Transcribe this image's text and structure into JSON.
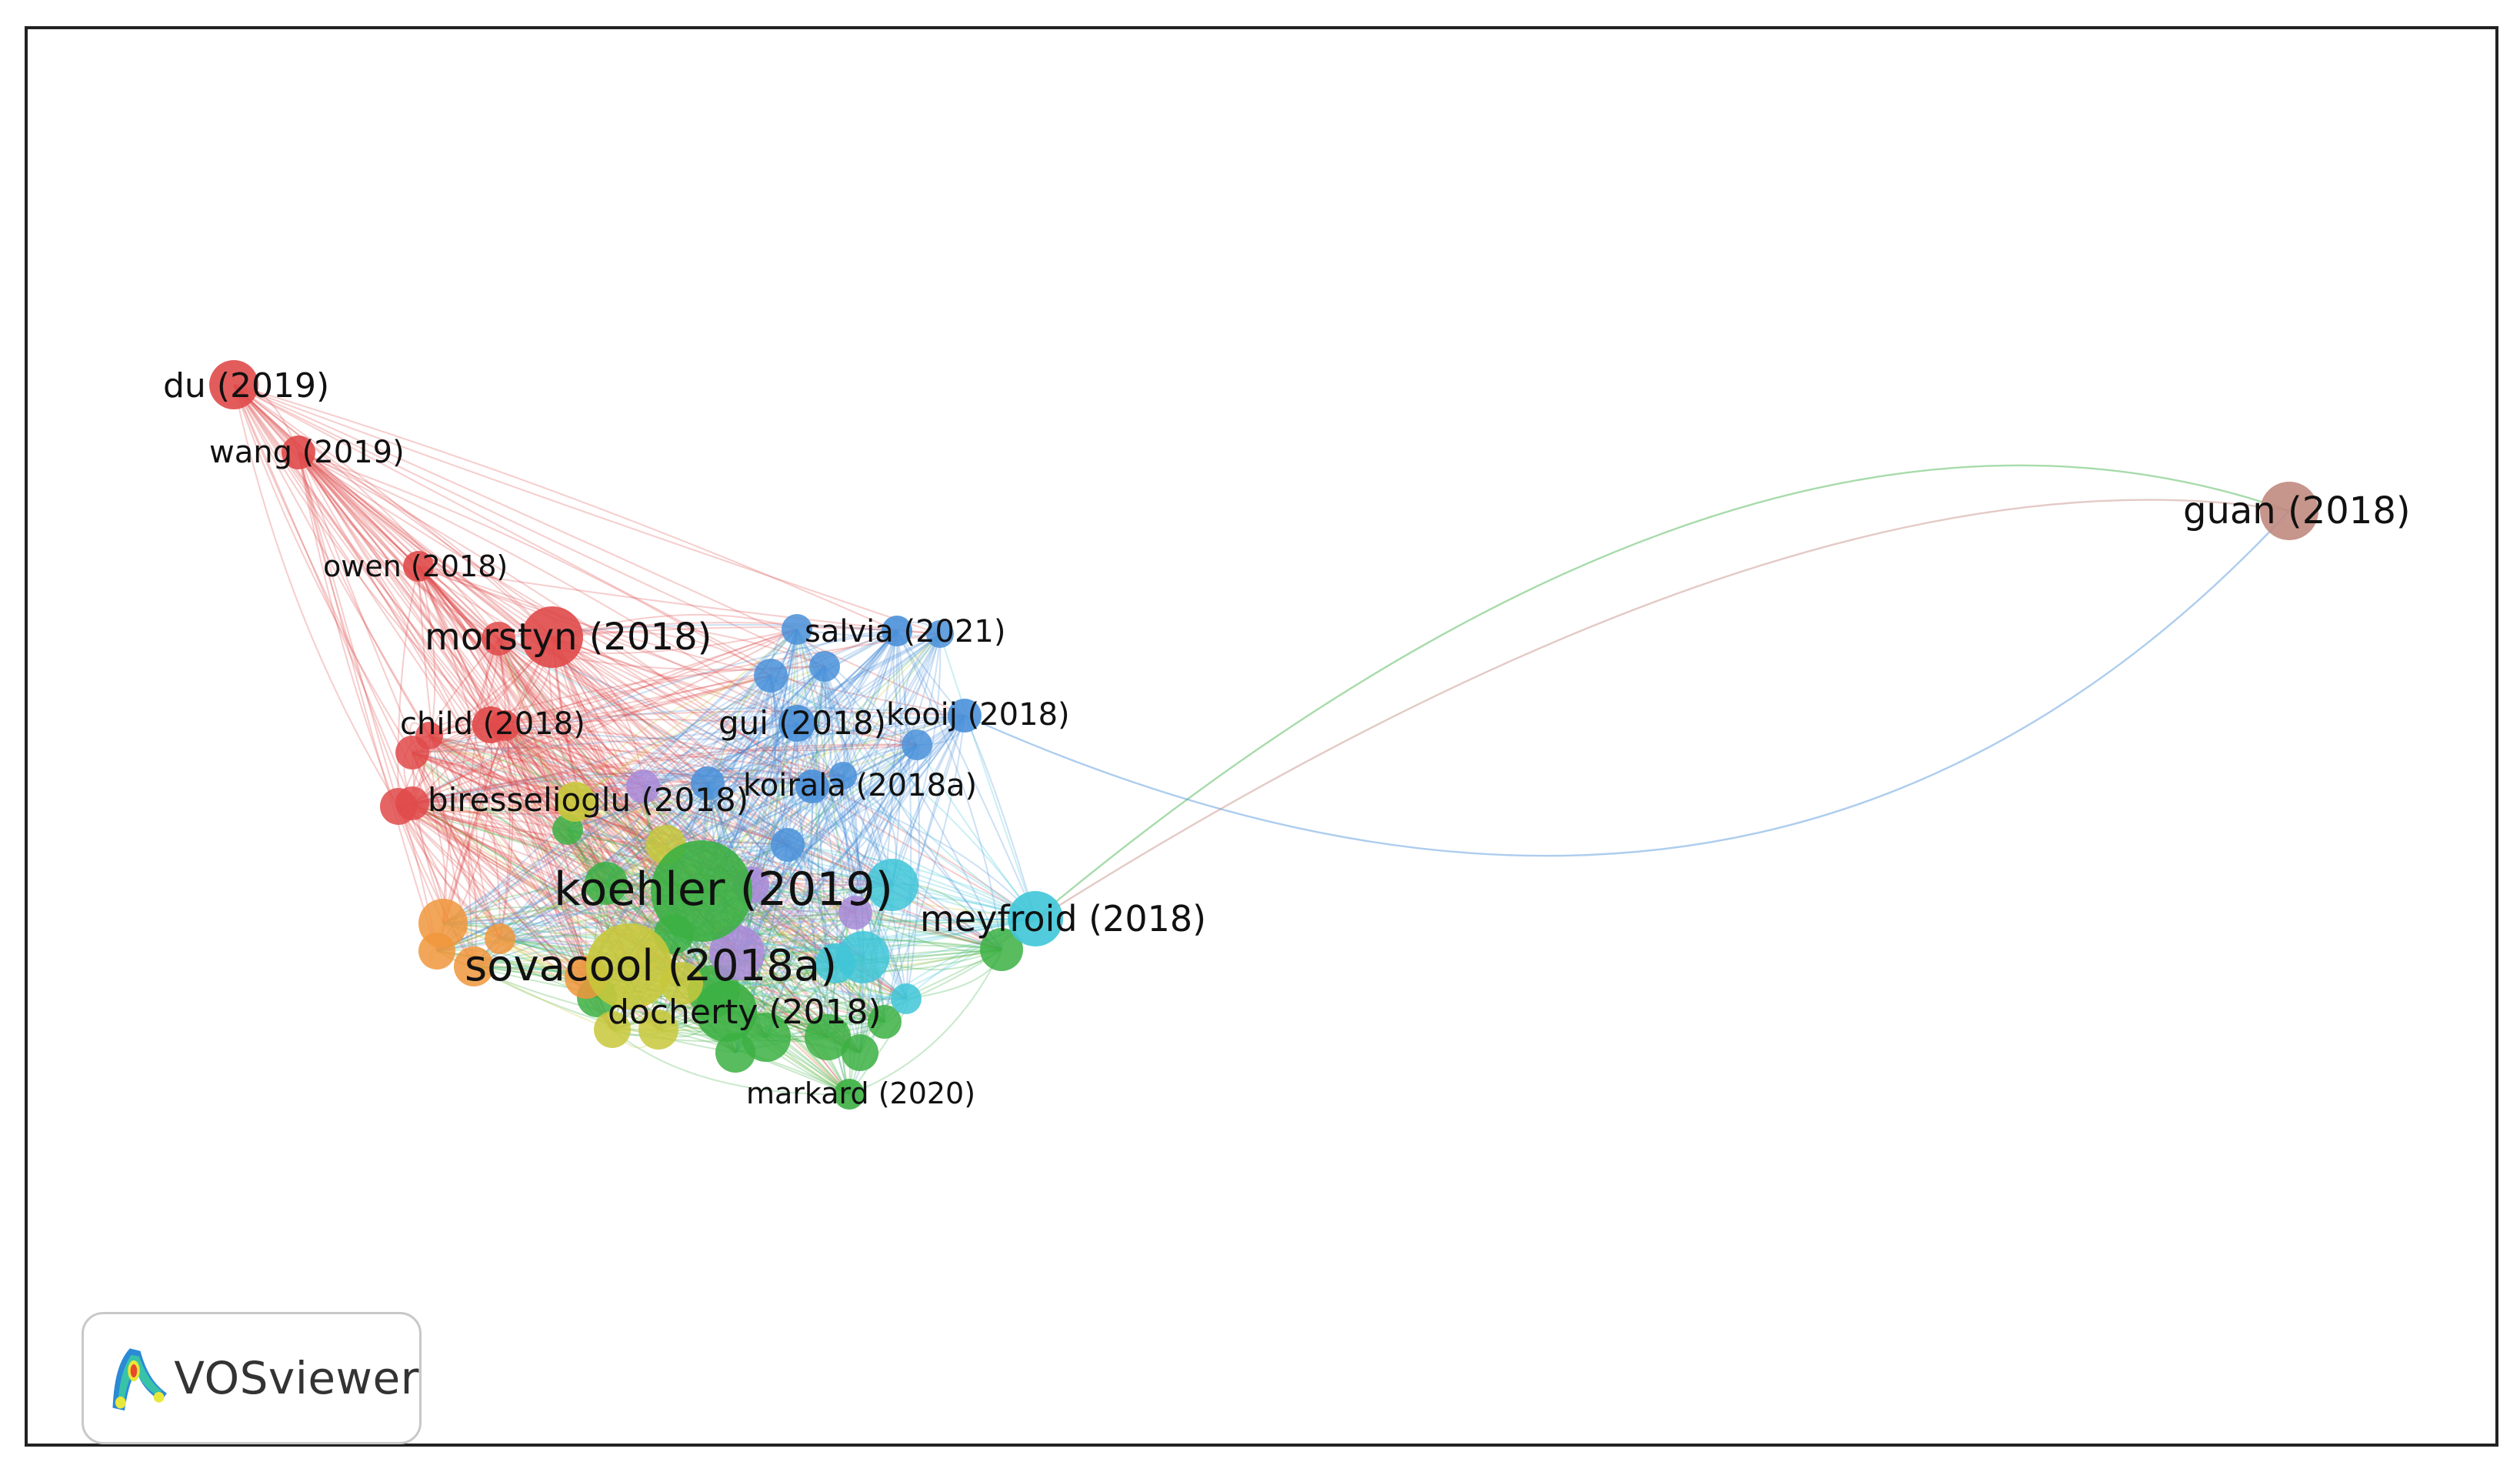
{
  "app": {
    "logo_text": "VOSviewer"
  },
  "colors": {
    "red": "#e04a4a",
    "blue": "#4a90d9",
    "green": "#3cb043",
    "yellow": "#c8c83c",
    "purple": "#a98ad8",
    "cyan": "#3fc6d8",
    "orange": "#f0963c",
    "brown": "#c08a80"
  },
  "nodes": [
    {
      "id": "du-2019",
      "label": "du (2019)",
      "cluster": "red"
    },
    {
      "id": "wang-2019",
      "label": "wang (2019)",
      "cluster": "red"
    },
    {
      "id": "owen-2018",
      "label": "owen (2018)",
      "cluster": "red"
    },
    {
      "id": "morstyn-2018",
      "label": "morstyn (2018)",
      "cluster": "red"
    },
    {
      "id": "child-2018",
      "label": "child (2018)",
      "cluster": "red"
    },
    {
      "id": "biresselioglu-2018",
      "label": "biresselioglu (2018)",
      "cluster": "yellow"
    },
    {
      "id": "salvia-2021",
      "label": "salvia (2021)",
      "cluster": "blue"
    },
    {
      "id": "gui-2018",
      "label": "gui (2018)",
      "cluster": "blue"
    },
    {
      "id": "kooij-2018",
      "label": "kooij (2018)",
      "cluster": "blue"
    },
    {
      "id": "koirala-2018a",
      "label": "koirala (2018a)",
      "cluster": "blue"
    },
    {
      "id": "koehler-2019",
      "label": "koehler (2019)",
      "cluster": "green"
    },
    {
      "id": "meyfroid-2018",
      "label": "meyfroid (2018)",
      "cluster": "cyan"
    },
    {
      "id": "sovacool-2018a",
      "label": "sovacool (2018a)",
      "cluster": "yellow"
    },
    {
      "id": "docherty-2018",
      "label": "docherty (2018)",
      "cluster": "green"
    },
    {
      "id": "markard-2020",
      "label": "markard (2020)",
      "cluster": "green"
    },
    {
      "id": "guan-2018",
      "label": "guan (2018)",
      "cluster": "brown"
    }
  ]
}
